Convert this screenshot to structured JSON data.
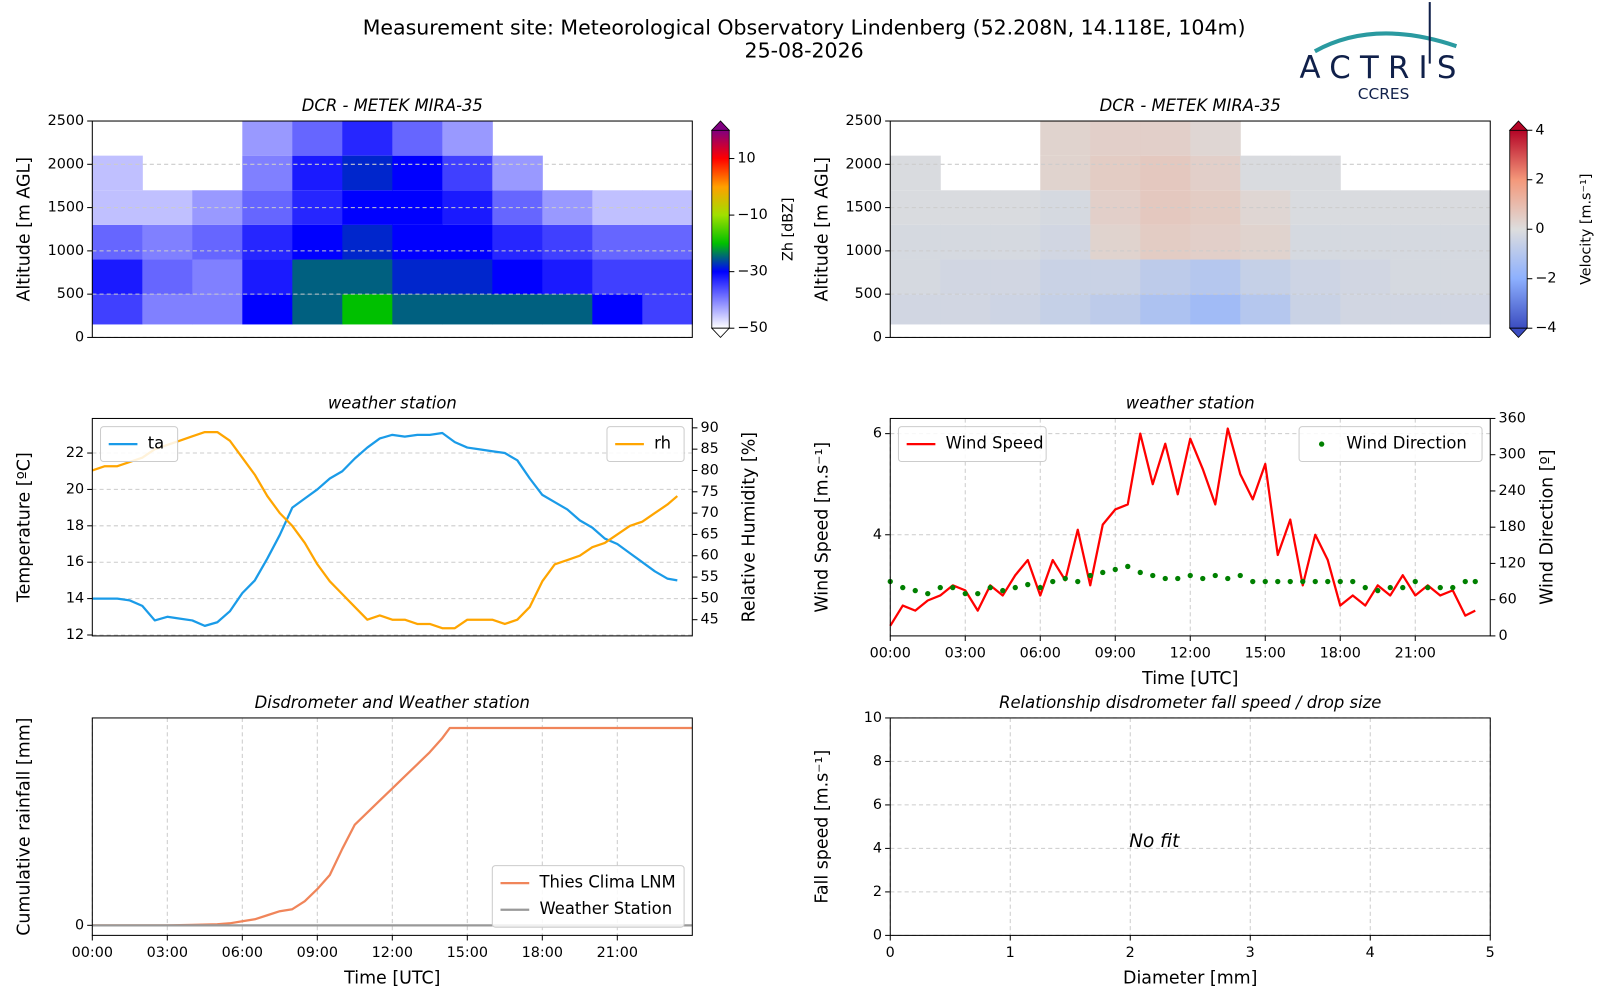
{
  "header": {
    "title": "Measurement site: Meteorological Observatory Lindenberg (52.208N, 14.118E, 104m)",
    "date": "25-08-2026",
    "logo": "ACTRIS",
    "logo_sub": "CCRES"
  },
  "chart_data": [
    {
      "type": "heatmap",
      "title": "DCR - METEK MIRA-35",
      "ylabel": "Altitude [m AGL]",
      "grid": true,
      "xlim": [
        0,
        24
      ],
      "ylim": [
        0,
        2500
      ],
      "yticks": [
        0,
        500,
        1000,
        1500,
        2000,
        2500
      ],
      "x": [
        0,
        2,
        4,
        6,
        8,
        10,
        12,
        14,
        16,
        18,
        20,
        22,
        24
      ],
      "y": [
        150,
        500,
        900,
        1300,
        1700,
        2100,
        2500
      ],
      "values": [
        [
          -35,
          -40,
          -40,
          -30,
          -25,
          -20,
          -25,
          -25,
          -25,
          -25,
          -30,
          -35
        ],
        [
          -32,
          -38,
          -40,
          -32,
          -25,
          -25,
          -28,
          -28,
          -30,
          -32,
          -35,
          -35
        ],
        [
          -38,
          -40,
          -38,
          -33,
          -30,
          -28,
          -30,
          -30,
          -33,
          -35,
          -38,
          -38
        ],
        [
          -45,
          -45,
          -42,
          -38,
          -33,
          -30,
          -30,
          -32,
          -38,
          -42,
          -45,
          -45
        ],
        [
          -45,
          null,
          null,
          -40,
          -32,
          -28,
          -30,
          -35,
          -42,
          null,
          null,
          null
        ],
        [
          null,
          null,
          null,
          -42,
          -38,
          -33,
          -38,
          -42,
          null,
          null,
          null,
          null
        ]
      ],
      "colorbar": {
        "label": "Zh [dBZ]",
        "lim": [
          -50,
          20
        ],
        "ticks": [
          10,
          {
            "value": -10,
            "label": "−10"
          },
          {
            "value": -30,
            "label": "−30"
          },
          {
            "value": -50,
            "label": "−50"
          }
        ],
        "colormap": [
          "#ffffff",
          "#8080ff",
          "#0000ff",
          "#00c000",
          "#a0e000",
          "#ffa000",
          "#ff0000",
          "#800080"
        ]
      }
    },
    {
      "type": "heatmap",
      "title": "DCR - METEK MIRA-35",
      "ylabel": "Altitude [m AGL]",
      "grid": true,
      "xlim": [
        0,
        24
      ],
      "ylim": [
        0,
        2500
      ],
      "yticks": [
        0,
        500,
        1000,
        1500,
        2000,
        2500
      ],
      "x": [
        0,
        2,
        4,
        6,
        8,
        10,
        12,
        14,
        16,
        18,
        20,
        22,
        24
      ],
      "y": [
        150,
        500,
        900,
        1300,
        1700,
        2100,
        2500
      ],
      "values": [
        [
          -0.3,
          -0.3,
          -0.4,
          -0.6,
          -0.8,
          -1.2,
          -1.5,
          -1.0,
          -0.5,
          -0.3,
          -0.3,
          -0.3
        ],
        [
          -0.2,
          -0.3,
          -0.3,
          -0.5,
          -0.5,
          -0.8,
          -1.0,
          -0.6,
          -0.4,
          -0.3,
          -0.2,
          -0.2
        ],
        [
          -0.2,
          -0.2,
          -0.2,
          -0.3,
          0.3,
          0.5,
          0.4,
          0.3,
          -0.2,
          -0.2,
          -0.2,
          -0.2
        ],
        [
          -0.1,
          -0.1,
          -0.1,
          -0.2,
          0.4,
          0.6,
          0.5,
          0.2,
          -0.1,
          -0.1,
          -0.1,
          -0.1
        ],
        [
          -0.1,
          null,
          null,
          0.3,
          0.5,
          0.6,
          0.4,
          -0.1,
          -0.1,
          null,
          null,
          null
        ],
        [
          null,
          null,
          null,
          0.3,
          0.4,
          0.4,
          0.2,
          null,
          null,
          null,
          null,
          null
        ]
      ],
      "colorbar": {
        "label": "Velocity [m.s⁻¹]",
        "lim": [
          -4,
          4
        ],
        "ticks": [
          4,
          2,
          0,
          {
            "value": -2,
            "label": "−2"
          },
          {
            "value": -4,
            "label": "−4"
          }
        ],
        "colormap": [
          "#3b4cc0",
          "#8db0fe",
          "#dddddd",
          "#f4987a",
          "#b40426"
        ]
      }
    },
    {
      "type": "line",
      "title": "weather station",
      "ylabel": "Temperature [ºC]",
      "y2label": "Relative Humidity [%]",
      "grid": true,
      "xlim": [
        0,
        24
      ],
      "ylim": [
        11.95,
        23.9
      ],
      "yticks": [
        12,
        14,
        16,
        18,
        20,
        22
      ],
      "y2lim": [
        41.2,
        92.2
      ],
      "y2ticks": [
        45,
        50,
        55,
        60,
        65,
        70,
        75,
        80,
        85,
        90
      ],
      "x": [
        0,
        0.5,
        1,
        1.5,
        2,
        2.5,
        3,
        3.5,
        4,
        4.5,
        5,
        5.5,
        6,
        6.5,
        7,
        7.5,
        8,
        8.5,
        9,
        9.5,
        10,
        10.5,
        11,
        11.5,
        12,
        12.5,
        13,
        13.5,
        14,
        14.5,
        15,
        15.5,
        16,
        16.5,
        17,
        17.5,
        18,
        18.5,
        19,
        19.5,
        20,
        20.5,
        21,
        21.5,
        22,
        22.5,
        23,
        23.4
      ],
      "series": [
        {
          "name": "ta",
          "color": "#1a9be8",
          "legend": "upper left",
          "values": [
            14.0,
            14.0,
            14.0,
            13.9,
            13.6,
            12.8,
            13.0,
            12.9,
            12.8,
            12.5,
            12.7,
            13.3,
            14.3,
            15.0,
            16.2,
            17.5,
            19.0,
            19.5,
            20.0,
            20.6,
            21.0,
            21.7,
            22.3,
            22.8,
            23.0,
            22.9,
            23.0,
            23.0,
            23.1,
            22.6,
            22.3,
            22.2,
            22.1,
            22.0,
            21.6,
            20.6,
            19.7,
            19.3,
            18.9,
            18.3,
            17.9,
            17.3,
            17.0,
            16.5,
            16.0,
            15.5,
            15.1,
            15.0
          ]
        },
        {
          "name": "rh",
          "color": "#ffa500",
          "axis": "y2",
          "legend": "upper right",
          "values": [
            80,
            81,
            81,
            82,
            83,
            85,
            86,
            87,
            88,
            89,
            89,
            87,
            83,
            79,
            74,
            70,
            67,
            63,
            58,
            54,
            51,
            48,
            45,
            46,
            45,
            45,
            44,
            44,
            43,
            43,
            45,
            45,
            45,
            44,
            45,
            48,
            54,
            58,
            59,
            60,
            62,
            63,
            65,
            67,
            68,
            70,
            72,
            74
          ]
        }
      ]
    },
    {
      "type": "line",
      "title": "weather station",
      "ylabel": "Wind Speed [m.s⁻¹]",
      "y2label": "Wind Direction [º]",
      "xlabel": "Time [UTC]",
      "grid": true,
      "xlim": [
        0,
        24
      ],
      "xticks": [
        {
          "value": 0,
          "label": "00:00"
        },
        {
          "value": 3,
          "label": "03:00"
        },
        {
          "value": 6,
          "label": "06:00"
        },
        {
          "value": 9,
          "label": "09:00"
        },
        {
          "value": 12,
          "label": "12:00"
        },
        {
          "value": 15,
          "label": "15:00"
        },
        {
          "value": 18,
          "label": "18:00"
        },
        {
          "value": 21,
          "label": "21:00"
        }
      ],
      "ylim": [
        2.0,
        6.3
      ],
      "yticks": [
        4,
        6
      ],
      "y2lim": [
        0,
        360
      ],
      "y2ticks": [
        0,
        60,
        120,
        180,
        240,
        300,
        360
      ],
      "x": [
        0,
        0.5,
        1,
        1.5,
        2,
        2.5,
        3,
        3.5,
        4,
        4.5,
        5,
        5.5,
        6,
        6.5,
        7,
        7.5,
        8,
        8.5,
        9,
        9.5,
        10,
        10.5,
        11,
        11.5,
        12,
        12.5,
        13,
        13.5,
        14,
        14.5,
        15,
        15.5,
        16,
        16.5,
        17,
        17.5,
        18,
        18.5,
        19,
        19.5,
        20,
        20.5,
        21,
        21.5,
        22,
        22.5,
        23,
        23.4
      ],
      "series": [
        {
          "name": "Wind Speed",
          "color": "#ff0000",
          "legend": "upper left",
          "values": [
            2.2,
            2.6,
            2.5,
            2.7,
            2.8,
            3.0,
            2.9,
            2.5,
            3.0,
            2.8,
            3.2,
            3.5,
            2.8,
            3.5,
            3.1,
            4.1,
            3.0,
            4.2,
            4.5,
            4.6,
            6.0,
            5.0,
            5.8,
            4.8,
            5.9,
            5.3,
            4.6,
            6.1,
            5.2,
            4.7,
            5.4,
            3.6,
            4.3,
            3.0,
            4.0,
            3.5,
            2.6,
            2.8,
            2.6,
            3.0,
            2.8,
            3.2,
            2.8,
            3.0,
            2.8,
            2.9,
            2.4,
            2.5
          ]
        },
        {
          "name": "Wind Direction",
          "color": "#008000",
          "axis": "y2",
          "style": "markers",
          "legend": "upper right",
          "values": [
            90,
            80,
            75,
            70,
            80,
            80,
            70,
            70,
            80,
            75,
            80,
            85,
            80,
            90,
            95,
            90,
            100,
            105,
            110,
            115,
            105,
            100,
            95,
            95,
            100,
            95,
            100,
            95,
            100,
            90,
            90,
            90,
            90,
            90,
            90,
            90,
            90,
            90,
            80,
            75,
            80,
            80,
            90,
            80,
            80,
            80,
            90,
            90
          ]
        }
      ]
    },
    {
      "type": "line",
      "title": "Disdrometer and Weather station",
      "ylabel": "Cumulative rainfall [mm]",
      "xlabel": "Time [UTC]",
      "grid": true,
      "xlim": [
        0,
        24
      ],
      "xticks": [
        {
          "value": 0,
          "label": "00:00"
        },
        {
          "value": 3,
          "label": "03:00"
        },
        {
          "value": 6,
          "label": "06:00"
        },
        {
          "value": 9,
          "label": "09:00"
        },
        {
          "value": 12,
          "label": "12:00"
        },
        {
          "value": 15,
          "label": "15:00"
        },
        {
          "value": 18,
          "label": "18:00"
        },
        {
          "value": 21,
          "label": "21:00"
        }
      ],
      "ylim": [
        -0.5,
        10.3
      ],
      "yticks": [
        0
      ],
      "series": [
        {
          "name": "Thies Clima LNM",
          "color": "#f0855a",
          "legend": "lower right",
          "x": [
            0,
            1,
            2,
            3,
            4,
            5,
            5.5,
            6,
            6.5,
            7,
            7.5,
            8,
            8.5,
            9,
            9.5,
            10,
            10.5,
            11,
            11.5,
            12,
            12.5,
            13,
            13.5,
            14,
            14.3,
            24
          ],
          "values": [
            0,
            0,
            0,
            0,
            0.02,
            0.05,
            0.1,
            0.2,
            0.3,
            0.5,
            0.7,
            0.8,
            1.2,
            1.8,
            2.5,
            3.8,
            5.0,
            5.6,
            6.2,
            6.8,
            7.4,
            8.0,
            8.6,
            9.3,
            9.8,
            9.8
          ]
        },
        {
          "name": "Weather Station",
          "color": "#999999",
          "legend": "lower right",
          "x": [
            0,
            24
          ],
          "values": [
            0,
            0
          ]
        }
      ]
    },
    {
      "type": "scatter",
      "title": "Relationship disdrometer fall speed / drop size",
      "ylabel": "Fall speed [m.s⁻¹]",
      "xlabel": "Diameter [mm]",
      "grid": true,
      "xlim": [
        0,
        5
      ],
      "xticks": [
        0,
        1,
        2,
        3,
        4,
        5
      ],
      "ylim": [
        0,
        10
      ],
      "yticks": [
        0,
        2,
        4,
        6,
        8,
        10
      ],
      "annotation": "No fit"
    }
  ]
}
